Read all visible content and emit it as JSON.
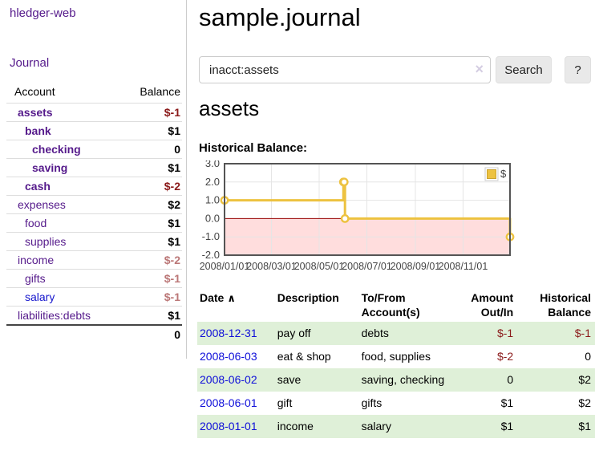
{
  "app": {
    "brand": "hledger-web",
    "nav": {
      "journal": "Journal"
    }
  },
  "sidebar": {
    "header": {
      "account": "Account",
      "balance": "Balance"
    },
    "accounts": [
      {
        "name": "assets",
        "indent": 1,
        "balance": "$-1",
        "bold": true,
        "neg": "strong"
      },
      {
        "name": "bank",
        "indent": 2,
        "balance": "$1",
        "bold": true,
        "neg": "none"
      },
      {
        "name": "checking",
        "indent": 3,
        "balance": "0",
        "bold": true,
        "neg": "none"
      },
      {
        "name": "saving",
        "indent": 3,
        "balance": "$1",
        "bold": true,
        "neg": "none"
      },
      {
        "name": "cash",
        "indent": 2,
        "balance": "$-2",
        "bold": true,
        "neg": "strong"
      },
      {
        "name": "expenses",
        "indent": 1,
        "balance": "$2",
        "bold": false,
        "neg": "none"
      },
      {
        "name": "food",
        "indent": 2,
        "balance": "$1",
        "bold": false,
        "neg": "none"
      },
      {
        "name": "supplies",
        "indent": 2,
        "balance": "$1",
        "bold": false,
        "neg": "none"
      },
      {
        "name": "income",
        "indent": 1,
        "balance": "$-2",
        "bold": false,
        "neg": "soft"
      },
      {
        "name": "gifts",
        "indent": 2,
        "balance": "$-1",
        "bold": false,
        "neg": "soft"
      },
      {
        "name": "salary",
        "indent": 2,
        "balance": "$-1",
        "bold": false,
        "neg": "soft",
        "unvisited": true
      },
      {
        "name": "liabilities:debts",
        "indent": 1,
        "balance": "$1",
        "bold": false,
        "neg": "none"
      }
    ],
    "total": "0"
  },
  "header": {
    "title": "sample.journal"
  },
  "search": {
    "value": "inacct:assets",
    "clear_icon": "×",
    "button_label": "Search",
    "help_label": "?"
  },
  "account_page": {
    "heading": "assets",
    "chart_label": "Historical Balance:"
  },
  "chart_data": {
    "type": "line",
    "step": true,
    "title": "Historical Balance",
    "series": [
      {
        "name": "$",
        "color": "#edc240",
        "marker_fill": "#ffffff",
        "points": [
          [
            "2008-01-01",
            1
          ],
          [
            "2008-06-01",
            2
          ],
          [
            "2008-06-02",
            2
          ],
          [
            "2008-06-03",
            0
          ],
          [
            "2008-12-31",
            -1
          ]
        ]
      }
    ],
    "x_range": [
      "2008-01-01",
      "2008-12-31"
    ],
    "ylim": [
      -2,
      3
    ],
    "y_tick_labels": [
      "3.0",
      "2.0",
      "1.0",
      "0.0",
      "-1.0",
      "-2.0"
    ],
    "y_ticks": [
      3,
      2,
      1,
      0,
      -1,
      -2
    ],
    "x_tick_labels": [
      "2008/01/01",
      "2008/03/01",
      "2008/05/01",
      "2008/07/01",
      "2008/09/01",
      "2008/11/01"
    ],
    "grid": true,
    "legend": {
      "label": "$",
      "position": "top-right"
    },
    "negative_region_fill": "#ffdddd",
    "zero_line_color": "#990000",
    "border_color": "#545454",
    "grid_color": "#e5e5e5",
    "tick_text_color": "#444444"
  },
  "register": {
    "sort_icon": "∧",
    "columns": [
      {
        "line1": "Date",
        "line2": "",
        "align": "left",
        "sortable": true
      },
      {
        "line1": "Description",
        "line2": "",
        "align": "left"
      },
      {
        "line1": "To/From",
        "line2": "Account(s)",
        "align": "left"
      },
      {
        "line1": "Amount",
        "line2": "Out/In",
        "align": "right"
      },
      {
        "line1": "Historical",
        "line2": "Balance",
        "align": "right"
      }
    ],
    "rows": [
      {
        "date": "2008-12-31",
        "description": "pay off",
        "accounts": "debts",
        "amount": "$-1",
        "amount_neg": true,
        "balance": "$-1",
        "balance_neg": true
      },
      {
        "date": "2008-06-03",
        "description": "eat & shop",
        "accounts": "food, supplies",
        "amount": "$-2",
        "amount_neg": true,
        "balance": "0",
        "balance_neg": false
      },
      {
        "date": "2008-06-02",
        "description": "save",
        "accounts": "saving, checking",
        "amount": "0",
        "amount_neg": false,
        "balance": "$2",
        "balance_neg": false
      },
      {
        "date": "2008-06-01",
        "description": "gift",
        "accounts": "gifts",
        "amount": "$1",
        "amount_neg": false,
        "balance": "$2",
        "balance_neg": false
      },
      {
        "date": "2008-01-01",
        "description": "income",
        "accounts": "salary",
        "amount": "$1",
        "amount_neg": false,
        "balance": "$1",
        "balance_neg": false
      }
    ]
  },
  "colors": {
    "link_purple": "#551a8b",
    "link_blue": "#1414cc",
    "negative_strong": "#8b1a1a",
    "negative_soft": "#bb7777",
    "row_stripe_green": "#dff0d8",
    "series_gold": "#edc240"
  }
}
